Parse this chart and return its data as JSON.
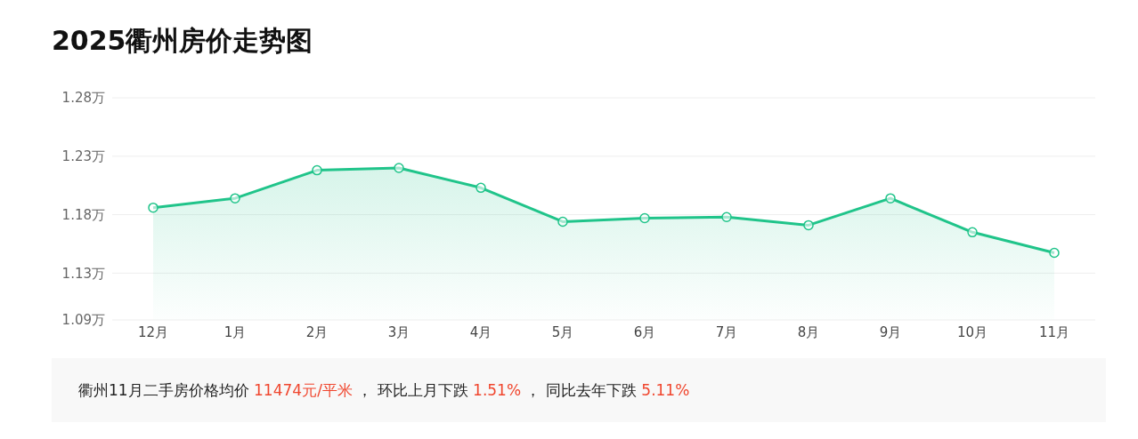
{
  "chart_data": {
    "type": "area",
    "title": "2025衢州房价走势图",
    "categories": [
      "12月",
      "1月",
      "2月",
      "3月",
      "4月",
      "5月",
      "6月",
      "7月",
      "8月",
      "9月",
      "10月",
      "11月"
    ],
    "series": [
      {
        "color": "#20c48a",
        "values": [
          1.186,
          1.194,
          1.218,
          1.22,
          1.203,
          1.174,
          1.177,
          1.178,
          1.171,
          1.194,
          1.165,
          1.1474
        ]
      }
    ],
    "ylim": [
      1.09,
      1.28
    ],
    "yticks": [
      {
        "value": 1.09,
        "label": "1.09万"
      },
      {
        "value": 1.13,
        "label": "1.13万"
      },
      {
        "value": 1.18,
        "label": "1.18万"
      },
      {
        "value": 1.23,
        "label": "1.23万"
      },
      {
        "value": 1.28,
        "label": "1.28万"
      }
    ],
    "grid": "y",
    "marker": "circle",
    "line_style": "solid",
    "annotations": [
      "衢州11月二手房价格均价 ",
      "11474元/平米",
      " ， 环比上月下跌 ",
      "1.51%",
      " ， 同比去年下跌 ",
      "5.11%"
    ]
  }
}
